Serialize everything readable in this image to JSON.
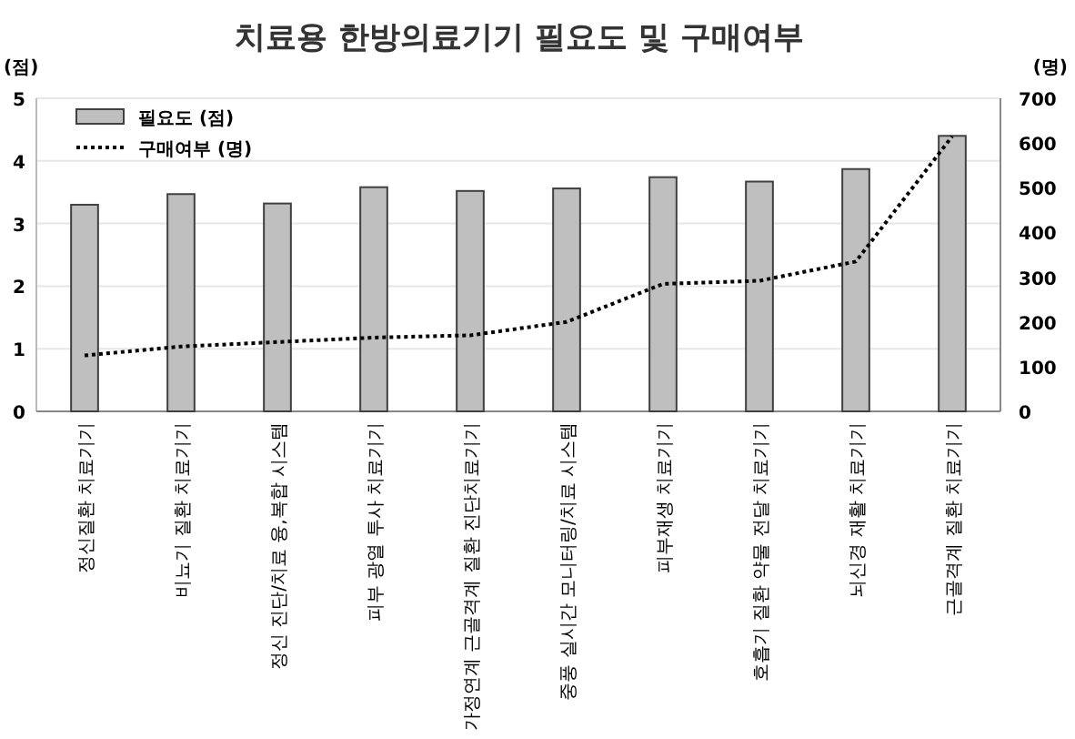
{
  "chart_data": {
    "type": "bar",
    "title": "치료용 한방의료기기 필요도 및 구매여부",
    "ylabel": "(점)",
    "y2label": "(명)",
    "categories": [
      "정신질환 치료기기",
      "비뇨기 질환 치료기기",
      "정신 진단/치료 융,복합 시스템",
      "피부 광열 투사 치료기기",
      "가정연계 근골격계 질환 진단치료기기",
      "중풍 실시간 모니터링/치료 시스템",
      "피부재생 치료기기",
      "호흡기 질환 약물 전달 치료기기",
      "뇌신경 재활 치료기기",
      "근골격계 질환 치료기기"
    ],
    "series": [
      {
        "name": "필요도 (점)",
        "color": "#bfbfbf",
        "values": [
          3.3,
          3.47,
          3.32,
          3.58,
          3.52,
          3.56,
          3.74,
          3.67,
          3.87,
          4.4
        ]
      },
      {
        "name": "구매여부 (명)",
        "type": "line",
        "axis": "y2",
        "color": "#000000",
        "line_style": "dotted",
        "values": [
          125,
          145,
          155,
          165,
          170,
          200,
          285,
          292,
          335,
          615
        ]
      }
    ],
    "ylim": [
      0,
      5
    ],
    "yticks": [
      0,
      1,
      2,
      3,
      4,
      5
    ],
    "y2lim": [
      0,
      700
    ],
    "y2ticks": [
      0,
      100,
      200,
      300,
      400,
      500,
      600,
      700
    ],
    "grid": "y",
    "legend": "top left"
  }
}
